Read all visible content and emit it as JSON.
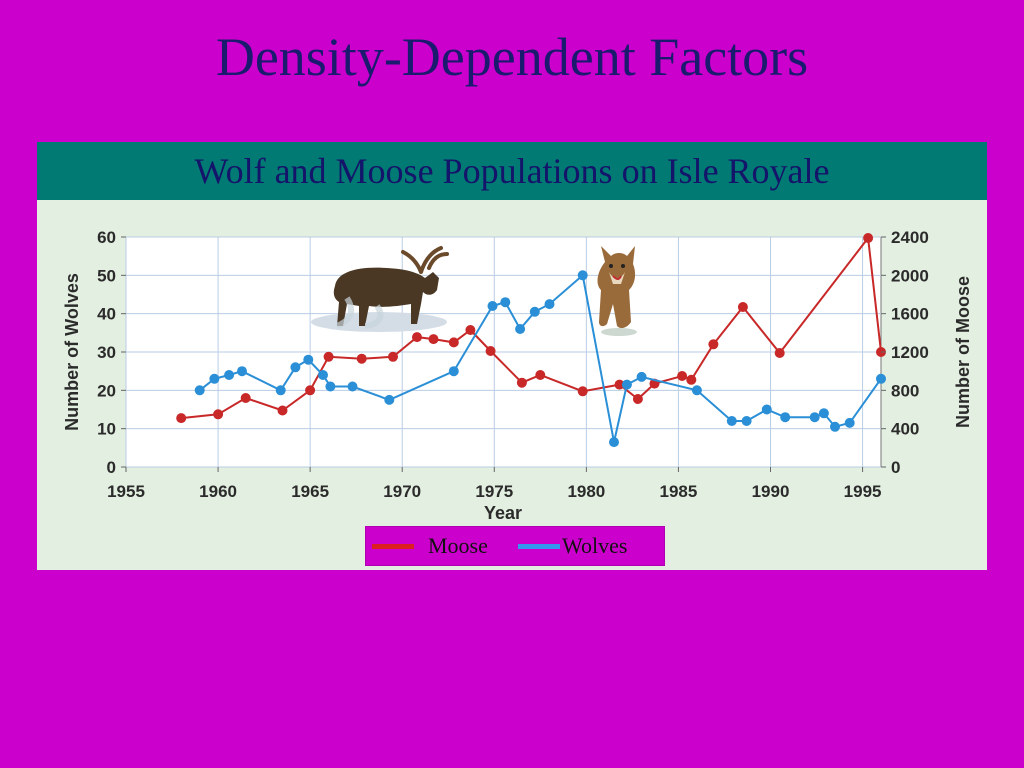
{
  "slide": {
    "title": "Density-Dependent Factors"
  },
  "chart_data": {
    "type": "line",
    "title": "Wolf and Moose Populations on Isle Royale",
    "xlabel": "Year",
    "ylabel_left": "Number of  Wolves",
    "ylabel_right": "Number of Moose",
    "xlim": [
      1955,
      1996
    ],
    "ylim_left": [
      0,
      60
    ],
    "ylim_right": [
      0,
      2400
    ],
    "x_ticks": [
      "1955",
      "1960",
      "1965",
      "1970",
      "1975",
      "1980",
      "1985",
      "1990",
      "1995"
    ],
    "y_ticks_left": [
      "0",
      "10",
      "20",
      "30",
      "40",
      "50",
      "60"
    ],
    "y_ticks_right": [
      "0",
      "400",
      "800",
      "1200",
      "1600",
      "2000",
      "2400"
    ],
    "grid": true,
    "legend_position": "bottom",
    "series": [
      {
        "name": "Moose",
        "axis": "right",
        "color": "#c82828",
        "x": [
          1958,
          1960,
          1961.5,
          1963.5,
          1965,
          1966,
          1967.8,
          1969.5,
          1970.8,
          1971.7,
          1972.8,
          1973.7,
          1974.8,
          1976.5,
          1977.5,
          1979.8,
          1981.8,
          1982.8,
          1983.7,
          1985.2,
          1985.7,
          1986.9,
          1988.5,
          1990.5,
          1995.3,
          1996
        ],
        "values": [
          510,
          550,
          720,
          590,
          800,
          1150,
          1130,
          1150,
          1355,
          1335,
          1300,
          1430,
          1210,
          880,
          960,
          790,
          860,
          710,
          870,
          950,
          910,
          1280,
          1670,
          1190,
          2390,
          1200
        ]
      },
      {
        "name": "Wolves",
        "axis": "left",
        "color": "#2a8fd6",
        "x": [
          1959,
          1959.8,
          1960.6,
          1961.3,
          1963.4,
          1964.2,
          1964.9,
          1965.7,
          1966.1,
          1967.3,
          1969.3,
          1972.8,
          1974.9,
          1975.6,
          1976.4,
          1977.2,
          1978,
          1979.8,
          1981.5,
          1982.2,
          1983,
          1986,
          1987.9,
          1988.7,
          1989.8,
          1990.8,
          1992.4,
          1992.9,
          1993.5,
          1994.3,
          1996
        ],
        "values": [
          20,
          23,
          24,
          25,
          20,
          26,
          28,
          24,
          21,
          21,
          17.5,
          25,
          42,
          43,
          36,
          40.5,
          42.5,
          50,
          6.5,
          21.5,
          23.5,
          20,
          12,
          12,
          15,
          13,
          13,
          14,
          10.5,
          11.5,
          23
        ]
      }
    ]
  },
  "images": {
    "moose": "moose-photo",
    "wolf": "wolf-photo"
  }
}
